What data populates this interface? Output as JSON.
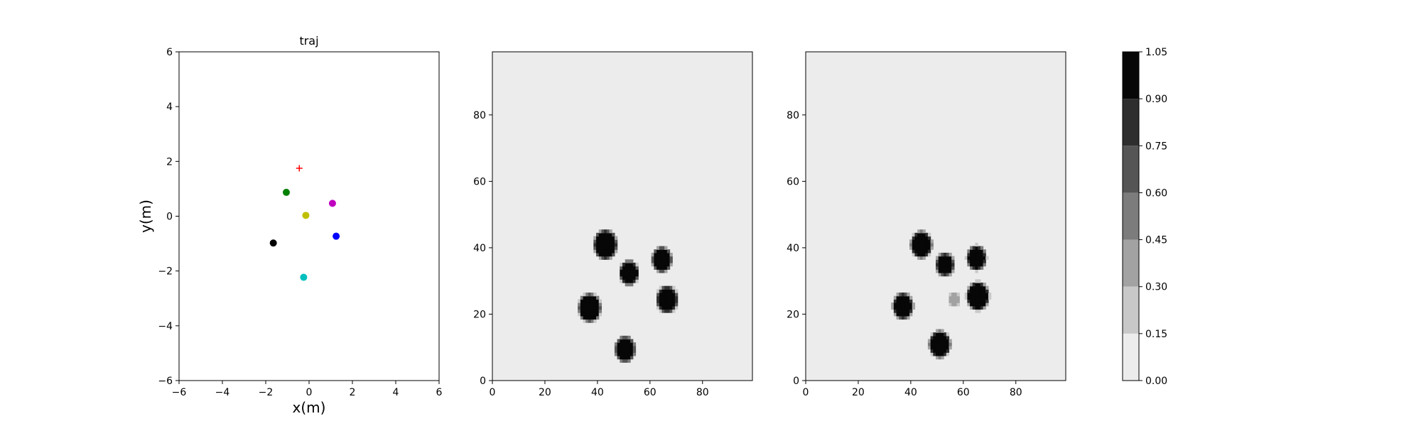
{
  "chart_data": [
    {
      "type": "scatter",
      "title": "traj",
      "xlabel": "x(m)",
      "ylabel": "y(m)",
      "xlim": [
        -6,
        6
      ],
      "ylim": [
        -6,
        6
      ],
      "xticks": [
        -6,
        -4,
        -2,
        0,
        2,
        4,
        6
      ],
      "yticks": [
        -6,
        -4,
        -2,
        0,
        2,
        4,
        6
      ],
      "xtick_labels": [
        "−6",
        "−4",
        "−2",
        "0",
        "2",
        "4",
        "6"
      ],
      "ytick_labels": [
        "−6",
        "−4",
        "−2",
        "0",
        "2",
        "4",
        "6"
      ],
      "grid": false,
      "goal": {
        "x": -0.45,
        "y": 1.75,
        "marker": "+",
        "color": "#ff0000"
      },
      "points": [
        {
          "x": -1.05,
          "y": 0.87,
          "color": "#008000"
        },
        {
          "x": 1.08,
          "y": 0.47,
          "color": "#bf00bf"
        },
        {
          "x": -0.15,
          "y": 0.03,
          "color": "#bfbf00"
        },
        {
          "x": 1.25,
          "y": -0.73,
          "color": "#0000ff"
        },
        {
          "x": -1.65,
          "y": -0.98,
          "color": "#000000"
        },
        {
          "x": -0.25,
          "y": -2.23,
          "color": "#00bfbf"
        }
      ]
    },
    {
      "type": "heatmap",
      "title": "",
      "xlabel": "",
      "ylabel": "",
      "xlim": [
        0,
        99
      ],
      "ylim": [
        0,
        99
      ],
      "xticks": [
        0,
        20,
        40,
        60,
        80
      ],
      "yticks": [
        0,
        20,
        40,
        60,
        80
      ],
      "xtick_labels": [
        "0",
        "20",
        "40",
        "60",
        "80"
      ],
      "ytick_labels": [
        "0",
        "20",
        "40",
        "60",
        "80"
      ],
      "background_value": 0.0,
      "blobs": [
        {
          "x": 43,
          "y": 41,
          "r": 3.8,
          "value": 1.0
        },
        {
          "x": 52,
          "y": 32.5,
          "r": 3.0,
          "value": 1.0
        },
        {
          "x": 64.5,
          "y": 36.5,
          "r": 3.1,
          "value": 1.0
        },
        {
          "x": 37,
          "y": 22,
          "r": 3.6,
          "value": 1.0
        },
        {
          "x": 66.5,
          "y": 24.5,
          "r": 3.4,
          "value": 1.0
        },
        {
          "x": 50.5,
          "y": 9.5,
          "r": 3.2,
          "value": 1.0
        }
      ]
    },
    {
      "type": "heatmap",
      "title": "",
      "xlabel": "",
      "ylabel": "",
      "xlim": [
        0,
        99
      ],
      "ylim": [
        0,
        99
      ],
      "xticks": [
        0,
        20,
        40,
        60,
        80
      ],
      "yticks": [
        0,
        20,
        40,
        60,
        80
      ],
      "xtick_labels": [
        "0",
        "20",
        "40",
        "60",
        "80"
      ],
      "ytick_labels": [
        "0",
        "20",
        "40",
        "60",
        "80"
      ],
      "background_value": 0.0,
      "blobs": [
        {
          "x": 44,
          "y": 41,
          "r": 3.4,
          "value": 1.0
        },
        {
          "x": 53,
          "y": 35,
          "r": 2.8,
          "value": 0.95
        },
        {
          "x": 65,
          "y": 37,
          "r": 3.0,
          "value": 1.0
        },
        {
          "x": 37,
          "y": 22.5,
          "r": 3.2,
          "value": 1.0
        },
        {
          "x": 65.5,
          "y": 25.5,
          "r": 3.6,
          "value": 1.0
        },
        {
          "x": 56.5,
          "y": 24.5,
          "r": 1.6,
          "value": 0.4
        },
        {
          "x": 51,
          "y": 11,
          "r": 3.4,
          "value": 0.98
        }
      ]
    }
  ],
  "colorbar": {
    "levels": [
      0.0,
      0.15,
      0.3,
      0.45,
      0.6,
      0.75,
      0.9,
      1.05
    ],
    "tick_labels": [
      "0.00",
      "0.15",
      "0.30",
      "0.45",
      "0.60",
      "0.75",
      "0.90",
      "1.05"
    ],
    "colors": [
      "#ececec",
      "#c8c8c8",
      "#a2a2a2",
      "#7c7c7c",
      "#555555",
      "#2e2e2e",
      "#070707"
    ]
  }
}
